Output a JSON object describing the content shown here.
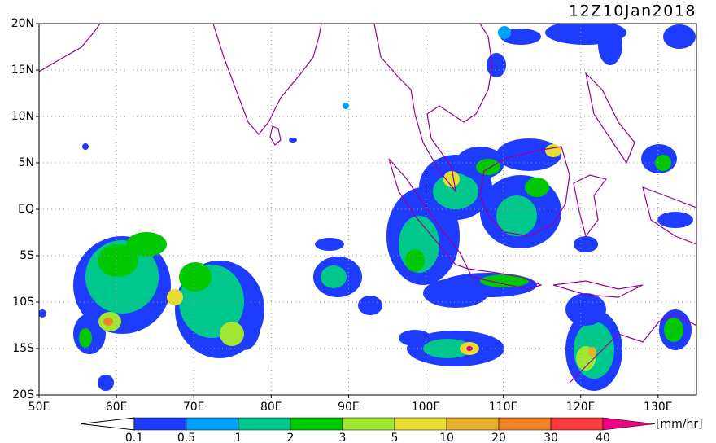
{
  "map": {
    "title": "12Z10Jan2018",
    "lat_labels": [
      "20N",
      "15N",
      "10N",
      "5N",
      "EQ",
      "5S",
      "10S",
      "15S",
      "20S"
    ],
    "lon_labels": [
      "50E",
      "60E",
      "70E",
      "80E",
      "90E",
      "100E",
      "110E",
      "120E",
      "130E"
    ],
    "colorbar": {
      "levels": [
        0.1,
        0.5,
        1,
        2,
        3,
        5,
        10,
        20,
        30,
        40
      ],
      "colors": [
        "#ffffff",
        "#1e3cff",
        "#00a0ff",
        "#00c88c",
        "#00c800",
        "#a0e632",
        "#e6dc32",
        "#e6af2d",
        "#f08228",
        "#fa3c3c",
        "#f00082"
      ],
      "unit": "[mm/hr]"
    }
  }
}
